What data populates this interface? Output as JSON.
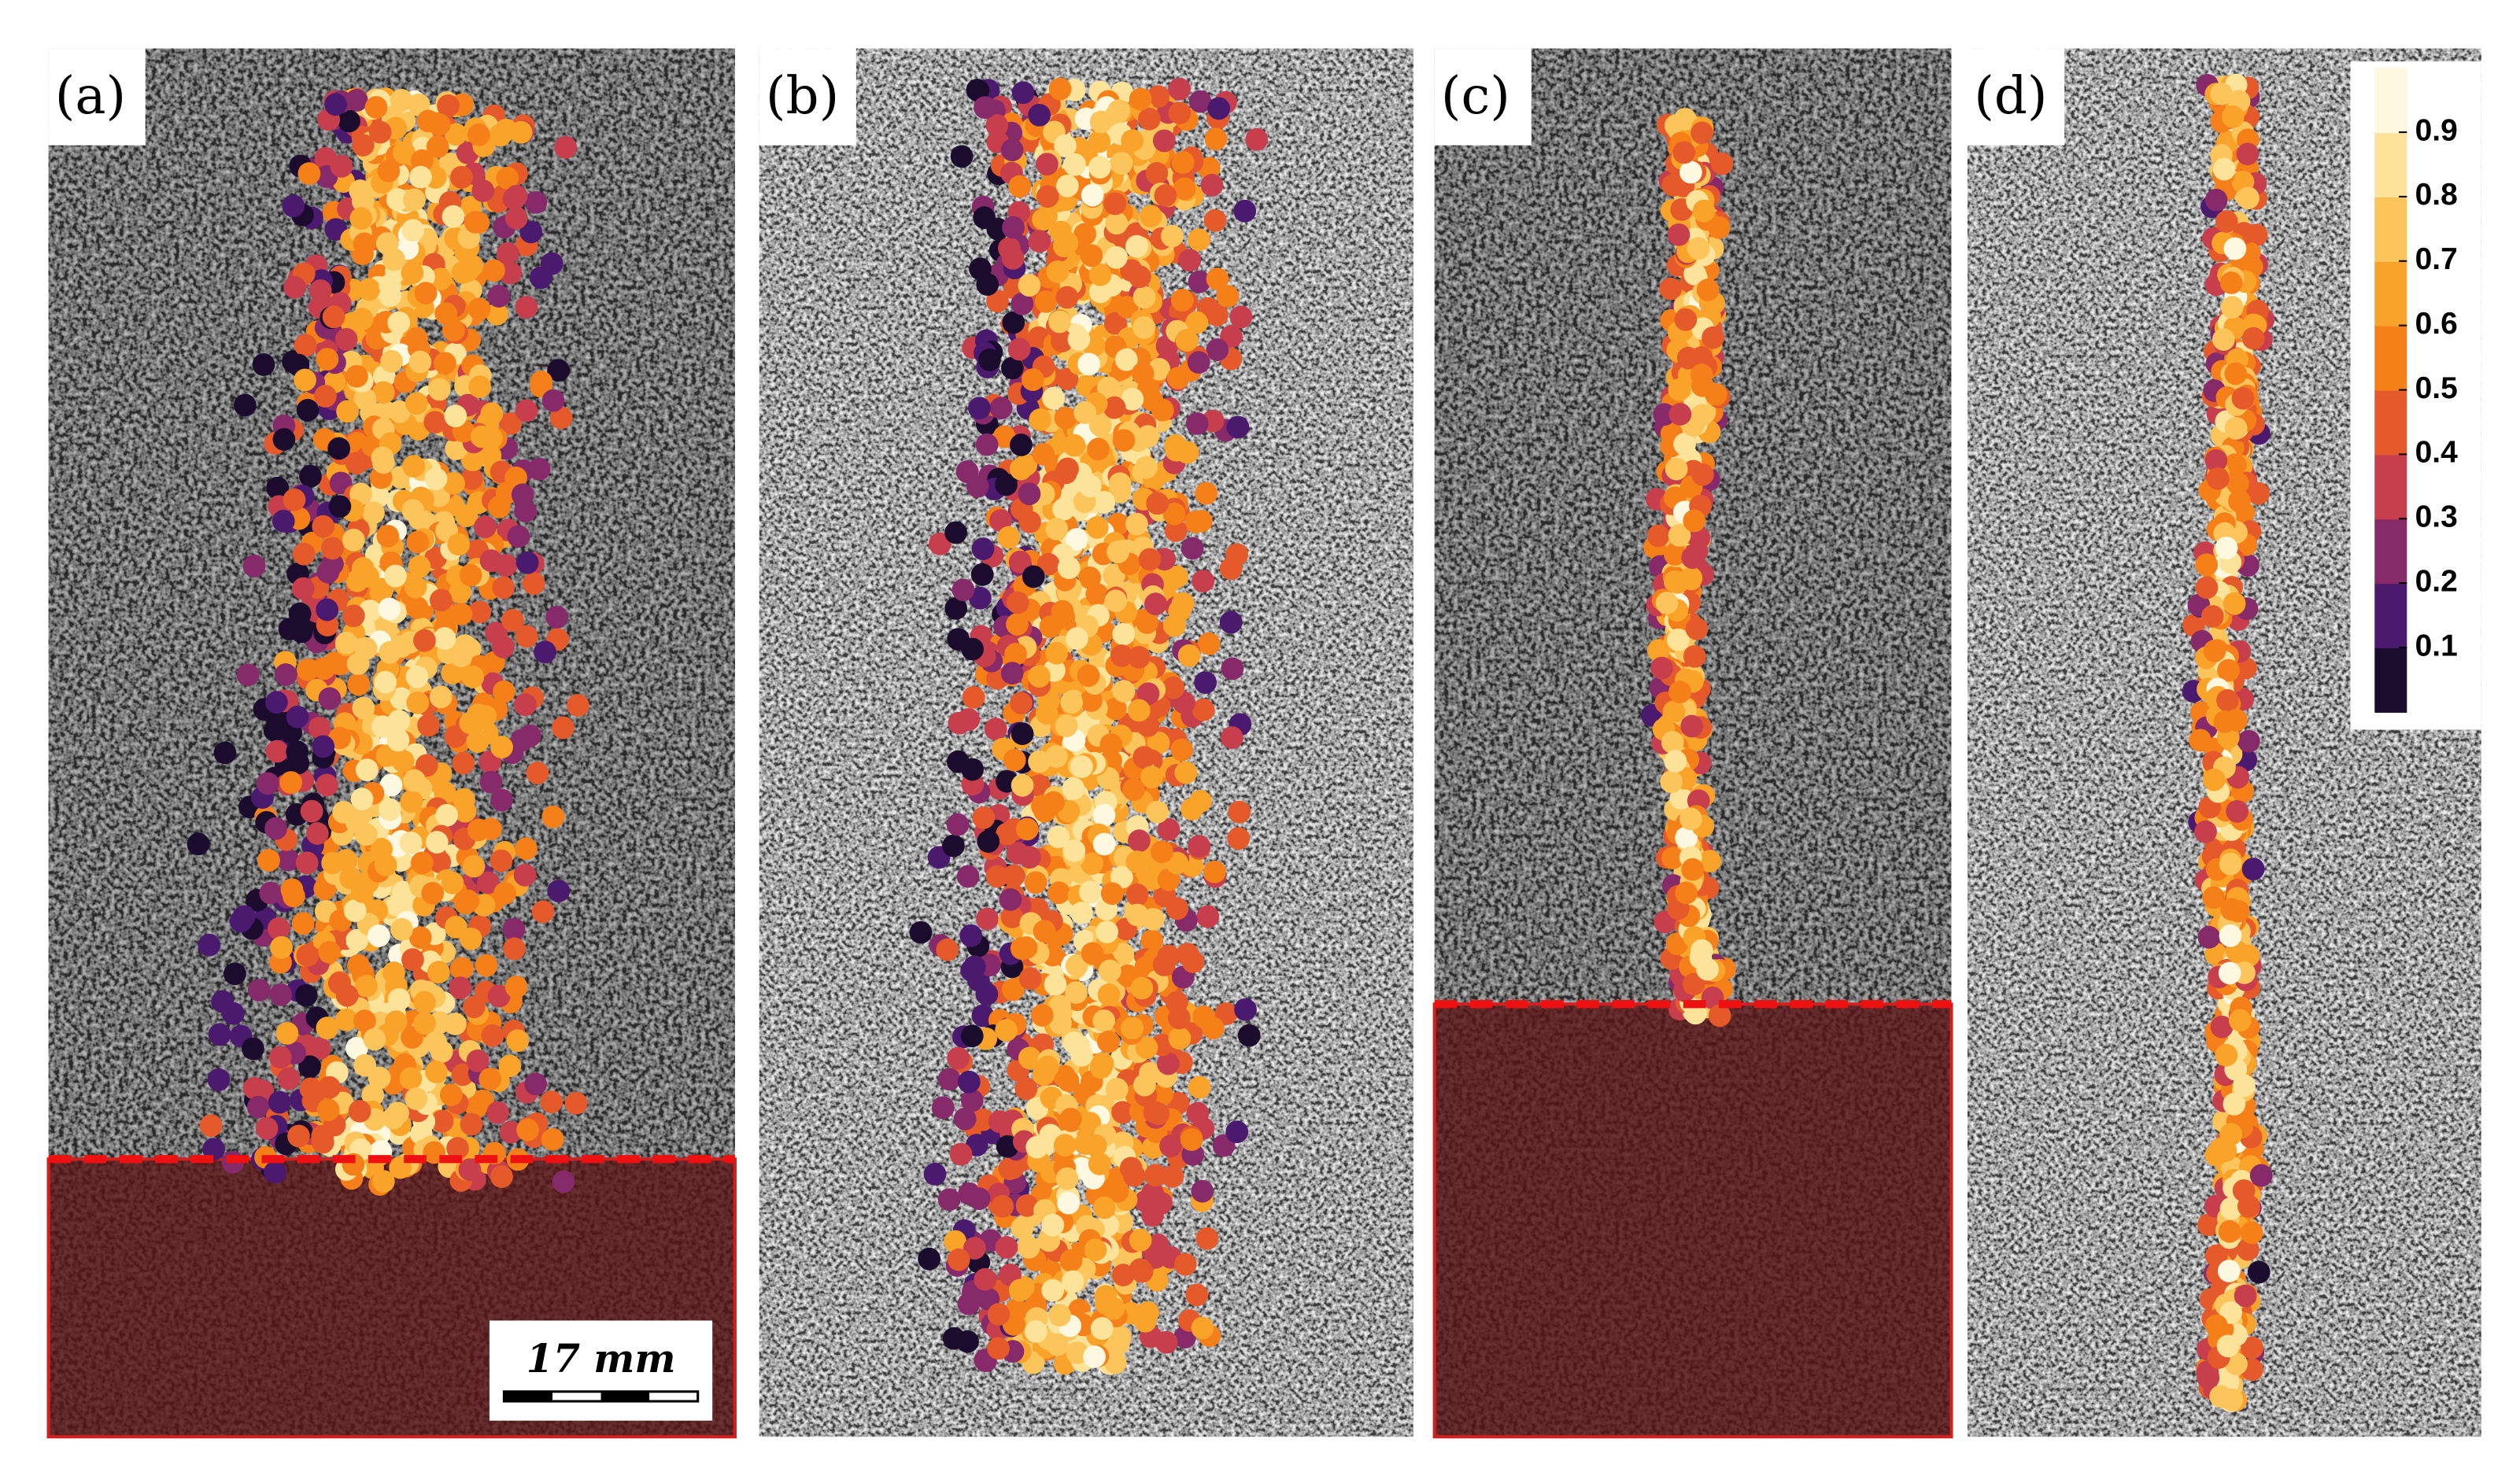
{
  "figure": {
    "panels": [
      {
        "label": "(a)"
      },
      {
        "label": "(b)"
      },
      {
        "label": "(c)"
      },
      {
        "label": "(d)"
      }
    ],
    "scale_bar": "17 mm",
    "colorbar": {
      "ticks": [
        0.1,
        0.2,
        0.3,
        0.4,
        0.5,
        0.6,
        0.7,
        0.8,
        0.9
      ],
      "lim": [
        0,
        1
      ],
      "colors": [
        "#1b0c2e",
        "#4a1a6e",
        "#862a6a",
        "#c73e4c",
        "#e55a2b",
        "#f5801a",
        "#faa32a",
        "#fbc55c",
        "#fde39a",
        "#fff8e0"
      ]
    }
  }
}
